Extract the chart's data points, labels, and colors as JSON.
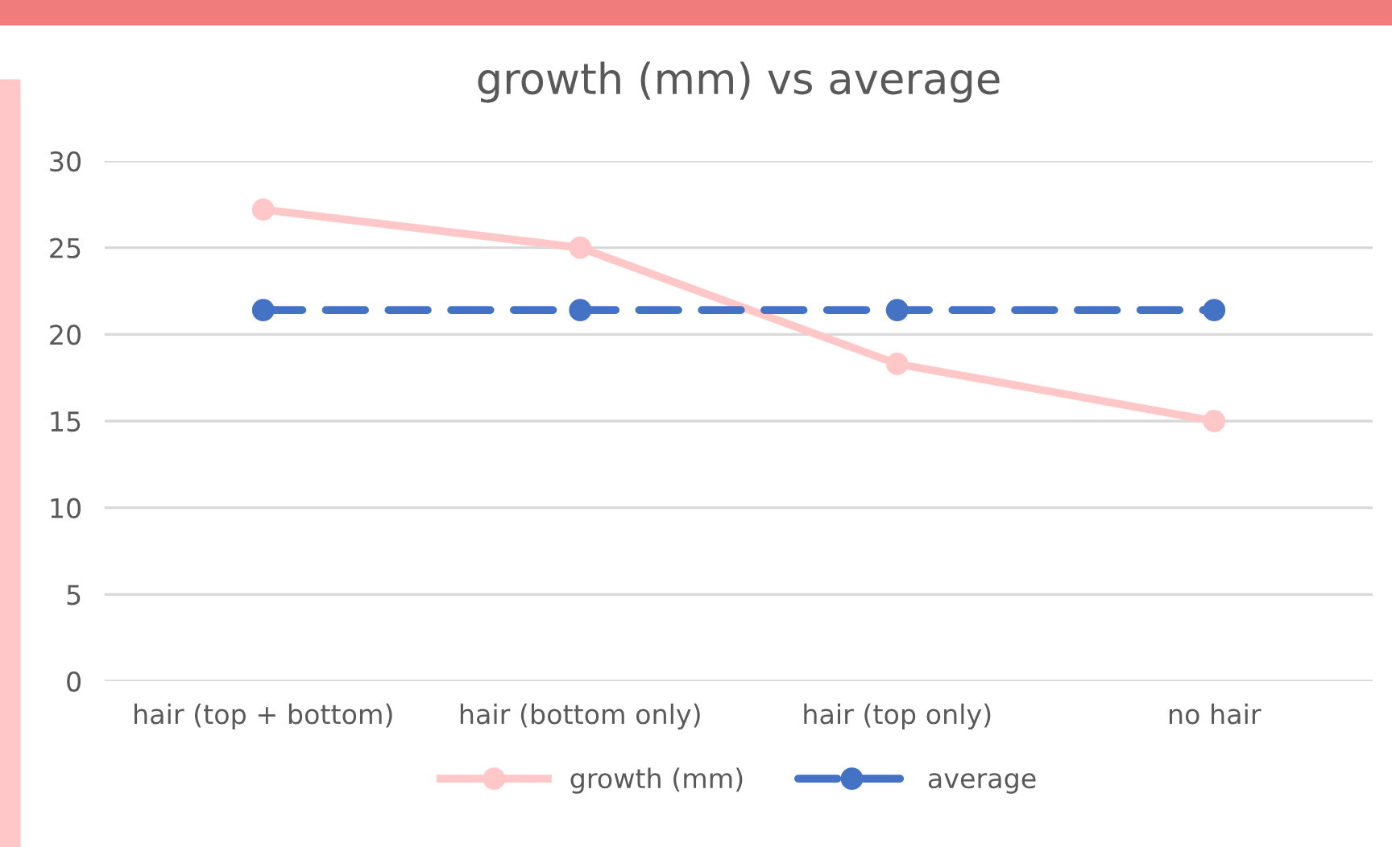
{
  "chart_data": {
    "type": "line",
    "title": "growth (mm) vs average",
    "categories": [
      "hair (top + bottom)",
      "hair (bottom only)",
      "hair (top only)",
      "no hair"
    ],
    "series": [
      {
        "name": "growth (mm)",
        "color": "#ffc7c7",
        "values": [
          27.2,
          25,
          18.3,
          15
        ],
        "line_style": "solid"
      },
      {
        "name": "average",
        "color": "#4472c4",
        "values": [
          21.4,
          21.4,
          21.4,
          21.4
        ],
        "line_style": "dashed"
      }
    ],
    "ylim": [
      0,
      30
    ],
    "yticks": [
      0,
      5,
      10,
      15,
      20,
      25,
      30
    ],
    "grid": "y",
    "legend": "bottom",
    "marker": "circle"
  }
}
